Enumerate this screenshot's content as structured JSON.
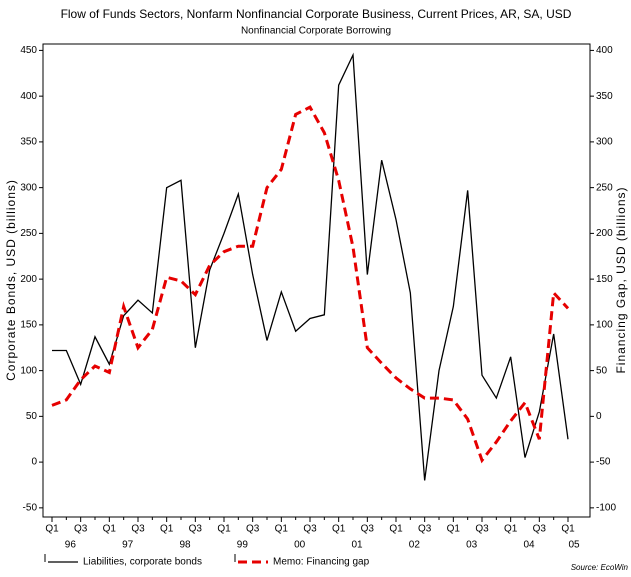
{
  "chart_data": {
    "type": "line",
    "subtitle": "Flow of Funds Sectors, Nonfarm Nonfinancial Corporate Business, Current Prices, AR, SA, USD",
    "title": "Nonfinancial Corporate Borrowing",
    "y_label": "Corporate Bonds, USD (billions)",
    "y2_label": "Financing Gap, USD (billions)",
    "source": "Source: EcoWin",
    "categories": [
      "Q1",
      null,
      "Q3",
      null,
      "Q1",
      null,
      "Q3",
      null,
      "Q1",
      null,
      "Q3",
      null,
      "Q1",
      null,
      "Q3",
      null,
      "Q1",
      null,
      "Q3",
      null,
      "Q1",
      null,
      "Q3",
      null,
      "Q1",
      null,
      "Q3",
      null,
      "Q1",
      null,
      "Q3",
      null,
      "Q1",
      null,
      "Q3",
      null,
      "Q1"
    ],
    "years": [
      null,
      "96",
      null,
      null,
      null,
      "97",
      null,
      null,
      null,
      "98",
      null,
      null,
      null,
      "99",
      null,
      null,
      null,
      "00",
      null,
      null,
      null,
      "01",
      null,
      null,
      null,
      "02",
      null,
      null,
      null,
      "03",
      null,
      null,
      null,
      "04",
      null,
      null,
      "05"
    ],
    "ylim": [
      -60,
      457
    ],
    "yticks": [
      -50,
      0,
      50,
      100,
      150,
      200,
      250,
      300,
      350,
      400,
      450
    ],
    "y2lim": [
      -110,
      407
    ],
    "y2ticks": [
      -100,
      -50,
      0,
      50,
      100,
      150,
      200,
      250,
      300,
      350,
      400
    ],
    "grid": false,
    "series": [
      {
        "name": "Liabilities, corporate bonds",
        "color": "#000000",
        "dash": false,
        "values": [
          122,
          122,
          85,
          137,
          107,
          160,
          177,
          163,
          300,
          308,
          125,
          210,
          250,
          293,
          205,
          133,
          186,
          143,
          157,
          161,
          412,
          445,
          205,
          330,
          265,
          185,
          -20,
          100,
          170,
          297,
          95,
          70,
          115,
          5,
          55,
          140,
          25
        ]
      },
      {
        "name": "Memo: Financing gap",
        "color": "#e60000",
        "dash": true,
        "axis": "y2",
        "values": [
          12,
          18,
          40,
          55,
          48,
          120,
          75,
          95,
          152,
          148,
          133,
          165,
          180,
          186,
          186,
          250,
          270,
          330,
          338,
          310,
          258,
          185,
          75,
          58,
          42,
          30,
          20,
          20,
          18,
          -3,
          -48,
          -28,
          -5,
          15,
          -25,
          135,
          118
        ]
      }
    ]
  }
}
